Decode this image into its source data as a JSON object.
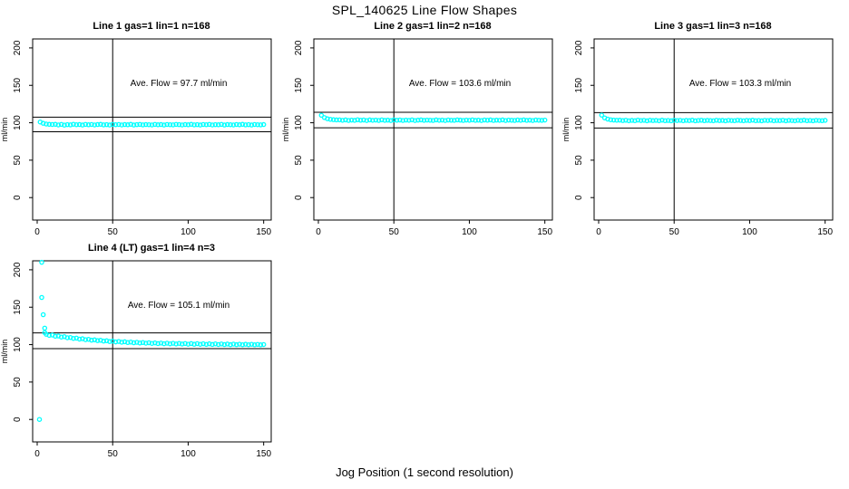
{
  "page": {
    "title": "SPL_140625  Line Flow Shapes",
    "xlabel": "Jog Position (1 second resolution)"
  },
  "colors": {
    "points": "#00ffff",
    "axis": "#000000",
    "background": "#ffffff"
  },
  "chart_data": {
    "type": "scatter",
    "title": "SPL_140625  Line Flow Shapes",
    "xlabel": "Jog Position (1 second resolution)",
    "shared": {
      "ylabel": "ml/min",
      "xlim": [
        -3,
        155
      ],
      "ylim": [
        -30,
        212
      ],
      "x_ticks": [
        0,
        50,
        100,
        150
      ],
      "y_ticks": [
        0,
        50,
        100,
        150,
        200
      ],
      "vline_x": 50,
      "marker": "open-circle",
      "grid": false
    },
    "panels": [
      {
        "title": "Line 1 gas=1 lin=1 n=168",
        "annotation": "Ave. Flow =  97.7  ml/min",
        "ave_flow": 97.7,
        "n": 168,
        "hlines": [
          107.5,
          87.9
        ],
        "points": [
          [
            2,
            101.0
          ],
          [
            4,
            99.3
          ],
          [
            6,
            98.3
          ],
          [
            8,
            97.9
          ],
          [
            10,
            97.7
          ],
          [
            12,
            97.9
          ],
          [
            14,
            97.1
          ],
          [
            16,
            97.8
          ],
          [
            18,
            96.9
          ],
          [
            20,
            97.5
          ],
          [
            22,
            97.2
          ],
          [
            24,
            98.0
          ],
          [
            26,
            97.4
          ],
          [
            28,
            97.6
          ],
          [
            30,
            97.0
          ],
          [
            32,
            97.8
          ],
          [
            34,
            97.3
          ],
          [
            36,
            97.7
          ],
          [
            38,
            97.1
          ],
          [
            40,
            97.6
          ],
          [
            42,
            97.9
          ],
          [
            44,
            97.2
          ],
          [
            46,
            97.5
          ],
          [
            48,
            97.0
          ],
          [
            50,
            97.8
          ],
          [
            52,
            97.4
          ],
          [
            54,
            97.7
          ],
          [
            56,
            97.1
          ],
          [
            58,
            97.6
          ],
          [
            60,
            97.3
          ],
          [
            62,
            97.9
          ],
          [
            64,
            97.0
          ],
          [
            66,
            97.5
          ],
          [
            68,
            97.8
          ],
          [
            70,
            97.2
          ],
          [
            72,
            97.6
          ],
          [
            74,
            97.4
          ],
          [
            76,
            97.1
          ],
          [
            78,
            97.8
          ],
          [
            80,
            97.3
          ],
          [
            82,
            97.6
          ],
          [
            84,
            97.0
          ],
          [
            86,
            97.7
          ],
          [
            88,
            97.4
          ],
          [
            90,
            97.2
          ],
          [
            92,
            97.8
          ],
          [
            94,
            97.5
          ],
          [
            96,
            97.1
          ],
          [
            98,
            97.6
          ],
          [
            100,
            97.3
          ],
          [
            102,
            97.9
          ],
          [
            104,
            97.2
          ],
          [
            106,
            97.5
          ],
          [
            108,
            97.0
          ],
          [
            110,
            97.7
          ],
          [
            112,
            97.4
          ],
          [
            114,
            97.8
          ],
          [
            116,
            97.1
          ],
          [
            118,
            97.5
          ],
          [
            120,
            97.3
          ],
          [
            122,
            97.8
          ],
          [
            124,
            97.0
          ],
          [
            126,
            97.6
          ],
          [
            128,
            97.4
          ],
          [
            130,
            97.1
          ],
          [
            132,
            97.7
          ],
          [
            134,
            97.3
          ],
          [
            136,
            97.9
          ],
          [
            138,
            97.2
          ],
          [
            140,
            97.5
          ],
          [
            142,
            97.0
          ],
          [
            144,
            97.7
          ],
          [
            146,
            97.4
          ],
          [
            148,
            97.2
          ],
          [
            150,
            97.6
          ]
        ]
      },
      {
        "title": "Line 2 gas=1 lin=2 n=168",
        "annotation": "Ave. Flow =  103.6  ml/min",
        "ave_flow": 103.6,
        "n": 168,
        "hlines": [
          114.0,
          93.2
        ],
        "points": [
          [
            2,
            110.0
          ],
          [
            4,
            106.9
          ],
          [
            6,
            105.3
          ],
          [
            8,
            104.6
          ],
          [
            10,
            104.1
          ],
          [
            12,
            103.8
          ],
          [
            14,
            103.9
          ],
          [
            16,
            103.3
          ],
          [
            18,
            103.8
          ],
          [
            20,
            103.1
          ],
          [
            22,
            103.6
          ],
          [
            24,
            103.2
          ],
          [
            26,
            104.0
          ],
          [
            28,
            103.4
          ],
          [
            30,
            103.7
          ],
          [
            32,
            103.0
          ],
          [
            34,
            103.8
          ],
          [
            36,
            103.3
          ],
          [
            38,
            103.6
          ],
          [
            40,
            103.1
          ],
          [
            42,
            103.9
          ],
          [
            44,
            103.2
          ],
          [
            46,
            103.5
          ],
          [
            48,
            103.0
          ],
          [
            50,
            103.8
          ],
          [
            52,
            103.4
          ],
          [
            54,
            103.7
          ],
          [
            56,
            103.1
          ],
          [
            58,
            103.6
          ],
          [
            60,
            103.3
          ],
          [
            62,
            103.9
          ],
          [
            64,
            103.0
          ],
          [
            66,
            103.5
          ],
          [
            68,
            103.8
          ],
          [
            70,
            103.2
          ],
          [
            72,
            103.6
          ],
          [
            74,
            103.4
          ],
          [
            76,
            103.1
          ],
          [
            78,
            103.8
          ],
          [
            80,
            103.3
          ],
          [
            82,
            103.6
          ],
          [
            84,
            103.0
          ],
          [
            86,
            103.7
          ],
          [
            88,
            103.4
          ],
          [
            90,
            103.2
          ],
          [
            92,
            103.8
          ],
          [
            94,
            103.5
          ],
          [
            96,
            103.1
          ],
          [
            98,
            103.6
          ],
          [
            100,
            103.3
          ],
          [
            102,
            103.9
          ],
          [
            104,
            103.2
          ],
          [
            106,
            103.5
          ],
          [
            108,
            103.0
          ],
          [
            110,
            103.7
          ],
          [
            112,
            103.4
          ],
          [
            114,
            103.8
          ],
          [
            116,
            103.1
          ],
          [
            118,
            103.5
          ],
          [
            120,
            103.3
          ],
          [
            122,
            103.8
          ],
          [
            124,
            103.0
          ],
          [
            126,
            103.6
          ],
          [
            128,
            103.4
          ],
          [
            130,
            103.1
          ],
          [
            132,
            103.7
          ],
          [
            134,
            103.3
          ],
          [
            136,
            103.9
          ],
          [
            138,
            103.2
          ],
          [
            140,
            103.5
          ],
          [
            142,
            103.0
          ],
          [
            144,
            103.7
          ],
          [
            146,
            103.4
          ],
          [
            148,
            103.2
          ],
          [
            150,
            103.6
          ]
        ]
      },
      {
        "title": "Line 3 gas=1 lin=3 n=168",
        "annotation": "Ave. Flow =  103.3  ml/min",
        "ave_flow": 103.3,
        "n": 168,
        "hlines": [
          113.6,
          93.0
        ],
        "points": [
          [
            2,
            110.2
          ],
          [
            4,
            106.5
          ],
          [
            6,
            104.9
          ],
          [
            8,
            104.0
          ],
          [
            10,
            103.6
          ],
          [
            12,
            103.4
          ],
          [
            14,
            103.5
          ],
          [
            16,
            102.9
          ],
          [
            18,
            103.4
          ],
          [
            20,
            102.7
          ],
          [
            22,
            103.2
          ],
          [
            24,
            102.8
          ],
          [
            26,
            103.6
          ],
          [
            28,
            103.0
          ],
          [
            30,
            103.3
          ],
          [
            32,
            102.6
          ],
          [
            34,
            103.4
          ],
          [
            36,
            102.9
          ],
          [
            38,
            103.2
          ],
          [
            40,
            102.7
          ],
          [
            42,
            103.5
          ],
          [
            44,
            102.8
          ],
          [
            46,
            103.1
          ],
          [
            48,
            102.6
          ],
          [
            50,
            103.4
          ],
          [
            52,
            103.0
          ],
          [
            54,
            103.3
          ],
          [
            56,
            102.7
          ],
          [
            58,
            103.2
          ],
          [
            60,
            102.9
          ],
          [
            62,
            103.5
          ],
          [
            64,
            102.6
          ],
          [
            66,
            103.1
          ],
          [
            68,
            103.4
          ],
          [
            70,
            102.8
          ],
          [
            72,
            103.2
          ],
          [
            74,
            103.0
          ],
          [
            76,
            102.7
          ],
          [
            78,
            103.4
          ],
          [
            80,
            102.9
          ],
          [
            82,
            103.2
          ],
          [
            84,
            102.6
          ],
          [
            86,
            103.3
          ],
          [
            88,
            103.0
          ],
          [
            90,
            102.8
          ],
          [
            92,
            103.4
          ],
          [
            94,
            103.1
          ],
          [
            96,
            102.7
          ],
          [
            98,
            103.2
          ],
          [
            100,
            102.9
          ],
          [
            102,
            103.5
          ],
          [
            104,
            102.8
          ],
          [
            106,
            103.1
          ],
          [
            108,
            102.6
          ],
          [
            110,
            103.3
          ],
          [
            112,
            103.0
          ],
          [
            114,
            103.4
          ],
          [
            116,
            102.7
          ],
          [
            118,
            103.1
          ],
          [
            120,
            102.9
          ],
          [
            122,
            103.4
          ],
          [
            124,
            102.6
          ],
          [
            126,
            103.2
          ],
          [
            128,
            103.0
          ],
          [
            130,
            102.7
          ],
          [
            132,
            103.3
          ],
          [
            134,
            102.9
          ],
          [
            136,
            103.5
          ],
          [
            138,
            102.8
          ],
          [
            140,
            103.1
          ],
          [
            142,
            102.6
          ],
          [
            144,
            103.3
          ],
          [
            146,
            103.0
          ],
          [
            148,
            102.8
          ],
          [
            150,
            103.2
          ]
        ]
      },
      {
        "title": "Line 4 (LT) gas=1 lin=4 n=3",
        "annotation": "Ave. Flow =  105.1  ml/min",
        "ave_flow": 105.1,
        "n": 3,
        "hlines": [
          115.6,
          94.6
        ],
        "points": [
          [
            1.5,
            0
          ],
          [
            3,
            210
          ],
          [
            3,
            163
          ],
          [
            4,
            140
          ],
          [
            5,
            122
          ],
          [
            5,
            116
          ],
          [
            6,
            113.8
          ],
          [
            8,
            112.4
          ],
          [
            10,
            112.8
          ],
          [
            12,
            111.2
          ],
          [
            14,
            111.5
          ],
          [
            16,
            110.1
          ],
          [
            18,
            110.6
          ],
          [
            20,
            109.2
          ],
          [
            22,
            109.5
          ],
          [
            24,
            108.3
          ],
          [
            26,
            108.7
          ],
          [
            28,
            107.4
          ],
          [
            30,
            107.9
          ],
          [
            32,
            106.6
          ],
          [
            34,
            107.1
          ],
          [
            36,
            105.9
          ],
          [
            38,
            106.4
          ],
          [
            40,
            105.3
          ],
          [
            42,
            105.8
          ],
          [
            44,
            104.7
          ],
          [
            46,
            105.2
          ],
          [
            48,
            104.1
          ],
          [
            50,
            104.7
          ],
          [
            52,
            103.6
          ],
          [
            54,
            104.2
          ],
          [
            56,
            103.2
          ],
          [
            58,
            103.8
          ],
          [
            60,
            102.8
          ],
          [
            62,
            103.4
          ],
          [
            64,
            102.5
          ],
          [
            66,
            103.1
          ],
          [
            68,
            102.2
          ],
          [
            70,
            102.8
          ],
          [
            72,
            101.9
          ],
          [
            74,
            102.5
          ],
          [
            76,
            101.6
          ],
          [
            78,
            102.3
          ],
          [
            80,
            101.4
          ],
          [
            82,
            102.1
          ],
          [
            84,
            101.2
          ],
          [
            86,
            101.9
          ],
          [
            88,
            101.0
          ],
          [
            90,
            101.8
          ],
          [
            92,
            100.9
          ],
          [
            94,
            101.6
          ],
          [
            96,
            100.8
          ],
          [
            98,
            101.5
          ],
          [
            100,
            100.6
          ],
          [
            102,
            101.4
          ],
          [
            104,
            100.5
          ],
          [
            106,
            101.3
          ],
          [
            108,
            100.4
          ],
          [
            110,
            101.2
          ],
          [
            112,
            100.3
          ],
          [
            114,
            101.1
          ],
          [
            116,
            100.2
          ],
          [
            118,
            101.0
          ],
          [
            120,
            100.1
          ],
          [
            122,
            100.9
          ],
          [
            124,
            100.0
          ],
          [
            126,
            100.8
          ],
          [
            128,
            99.9
          ],
          [
            130,
            100.7
          ],
          [
            132,
            99.9
          ],
          [
            134,
            100.6
          ],
          [
            136,
            99.8
          ],
          [
            138,
            100.5
          ],
          [
            140,
            99.8
          ],
          [
            142,
            100.4
          ],
          [
            144,
            99.7
          ],
          [
            146,
            100.3
          ],
          [
            148,
            99.7
          ],
          [
            150,
            100.1
          ]
        ]
      }
    ]
  }
}
